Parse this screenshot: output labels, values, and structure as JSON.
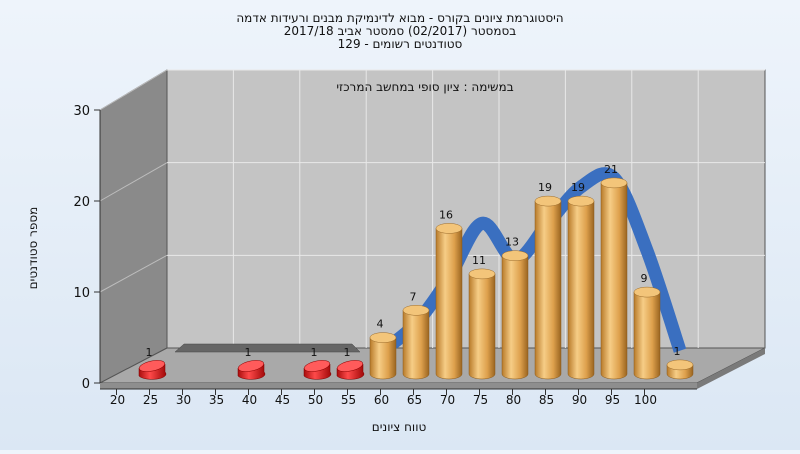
{
  "titles": {
    "line1": "היסטוגרמת ציונים בקורס - מבוא לדינמיקת מבנים ורעידות אדמה",
    "line2": "בסמסטר  (02/2017)  סמסטר אביב 2017/18",
    "line3": "סטודנטים רשומים - 129"
  },
  "colors": {
    "bar_gold": "#e0a450",
    "bar_red": "#dd1c1c",
    "curve_blue": "#3a6fc0",
    "wall_back": "#c4c4c4",
    "wall_left": "#8a8a8a",
    "floor": "#a9a9a9"
  },
  "chart_data": {
    "type": "bar",
    "title": "",
    "annotation": "במשימה : ציון סופי במחשב המרכזי",
    "xlabel": "טווח ציונים",
    "ylabel": "מספר סטודנטים",
    "ylim": [
      0,
      30
    ],
    "yticks": [
      0,
      10,
      20,
      30
    ],
    "xticks": [
      20,
      25,
      30,
      35,
      40,
      45,
      50,
      55,
      60,
      65,
      70,
      75,
      80,
      85,
      90,
      95,
      100
    ],
    "categories": [
      20,
      35,
      45,
      50,
      55,
      60,
      65,
      70,
      75,
      80,
      85,
      90,
      95,
      100
    ],
    "values": [
      1,
      1,
      1,
      1,
      4,
      7,
      16,
      11,
      13,
      19,
      19,
      21,
      9,
      1
    ],
    "below_pass": [
      true,
      true,
      true,
      true,
      false,
      false,
      false,
      false,
      false,
      false,
      false,
      false,
      false,
      false
    ],
    "grid": true,
    "curve": {
      "x": [
        55,
        60,
        65,
        70,
        75,
        80,
        85,
        90,
        95,
        100
      ],
      "y": [
        3,
        6,
        11,
        17,
        13,
        17,
        21,
        22,
        14,
        3
      ]
    }
  }
}
